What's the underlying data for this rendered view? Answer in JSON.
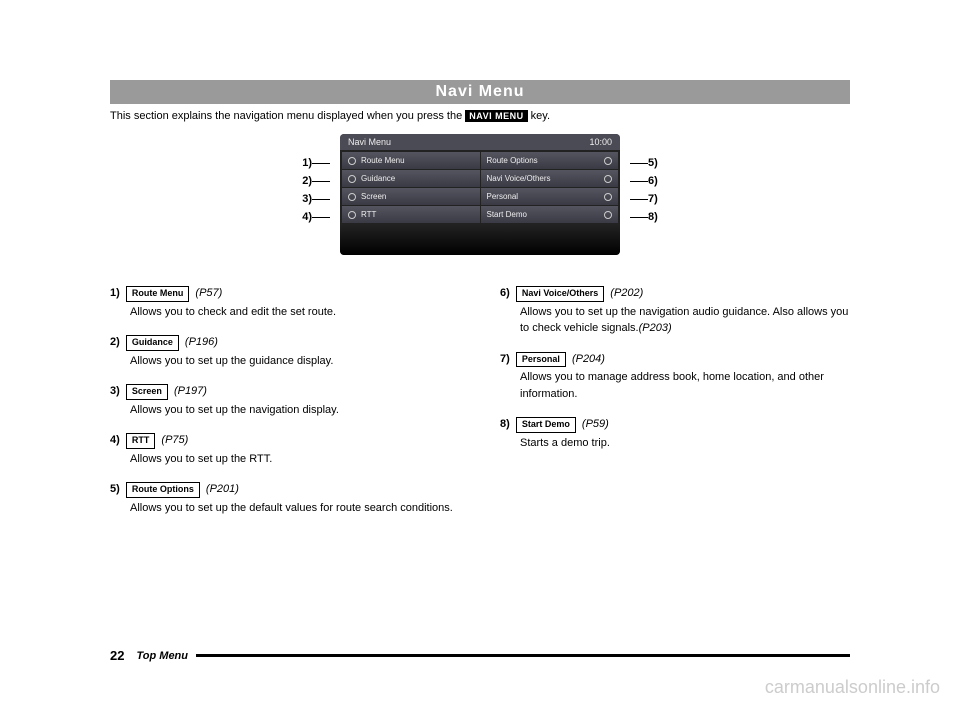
{
  "header": {
    "title": "Navi Menu"
  },
  "intro": {
    "before": "This section explains the navigation menu displayed when you press the ",
    "key_label": "NAVI MENU",
    "after": " key."
  },
  "screen": {
    "title": "Navi Menu",
    "clock": "10:00",
    "left": [
      "Route Menu",
      "Guidance",
      "Screen",
      "RTT"
    ],
    "right": [
      "Route Options",
      "Navi Voice/Others",
      "Personal",
      "Start Demo"
    ]
  },
  "callouts_left": [
    "1)",
    "2)",
    "3)",
    "4)"
  ],
  "callouts_right": [
    "5)",
    "6)",
    "7)",
    "8)"
  ],
  "left_items": [
    {
      "num": "1)",
      "btn": "Route Menu",
      "pref": "(P57)",
      "text": "Allows you to check and edit the set route."
    },
    {
      "num": "2)",
      "btn": "Guidance",
      "pref": "(P196)",
      "text": "Allows you to set up the guidance display."
    },
    {
      "num": "3)",
      "btn": "Screen",
      "pref": "(P197)",
      "text": "Allows you to set up the navigation display."
    },
    {
      "num": "4)",
      "btn": "RTT",
      "pref": "(P75)",
      "text": "Allows you to set up the RTT."
    },
    {
      "num": "5)",
      "btn": "Route Options",
      "pref": "(P201)",
      "text": "Allows you to set up the default values for route search conditions."
    }
  ],
  "right_items": [
    {
      "num": "6)",
      "btn": "Navi Voice/Others",
      "pref": "(P202)",
      "text": "Allows you to set up the navigation audio guidance. Also allows you to check vehicle signals.",
      "tail_pref": "(P203)"
    },
    {
      "num": "7)",
      "btn": "Personal",
      "pref": "(P204)",
      "text": "Allows you to manage address book, home location, and other information."
    },
    {
      "num": "8)",
      "btn": "Start Demo",
      "pref": "(P59)",
      "text": "Starts a demo trip."
    }
  ],
  "footer": {
    "page": "22",
    "section": "Top Menu"
  },
  "watermark": "carmanualsonline.info"
}
